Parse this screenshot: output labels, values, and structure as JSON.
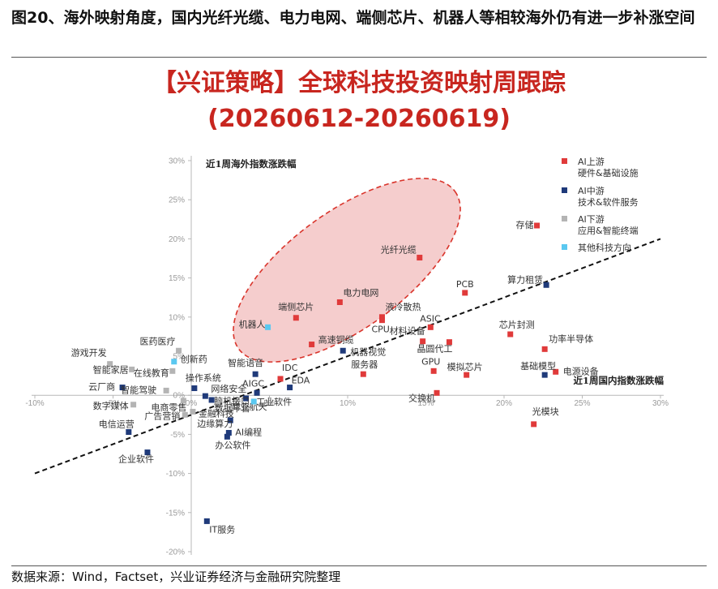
{
  "figure_title": "图20、海外映射角度，国内光纤光缆、电力电网、端侧芯片、机器人等相较海外仍有进一步补涨空间",
  "source": "数据来源：Wind，Factset，兴业证券经济与金融研究院整理",
  "chart_data": {
    "type": "scatter",
    "title": "【兴证策略】全球科技投资映射周跟踪",
    "subtitle": "(20260612-20260619)",
    "xlabel": "近1周国内指数涨跌幅",
    "ylabel": "近1周海外指数涨跌幅",
    "xlim": [
      -0.1,
      0.3
    ],
    "ylim": [
      -0.2,
      0.3
    ],
    "x_ticks": [
      "-10%",
      "-5%",
      "0%",
      "5%",
      "10%",
      "15%",
      "20%",
      "25%",
      "30%"
    ],
    "x_tick_values": [
      -0.1,
      -0.05,
      0,
      0.05,
      0.1,
      0.15,
      0.2,
      0.25,
      0.3
    ],
    "y_ticks": [
      "30%",
      "25%",
      "20%",
      "15%",
      "10%",
      "5%",
      "0%",
      "-5%",
      "-10%",
      "-15%",
      "-20%"
    ],
    "y_tick_values": [
      0.3,
      0.25,
      0.2,
      0.15,
      0.1,
      0.05,
      0,
      -0.05,
      -0.1,
      -0.15,
      -0.2
    ],
    "grid": false,
    "legend_position": "top-right",
    "legend": [
      {
        "group": "upstream",
        "color": "#e03a3a",
        "line1": "AI上游",
        "line2": "硬件&基础设施"
      },
      {
        "group": "midstream",
        "color": "#1f3a7a",
        "line1": "AI中游",
        "line2": "技术&软件服务"
      },
      {
        "group": "downstream",
        "color": "#b4b4b4",
        "line1": "AI下游",
        "line2": "应用&智能终端"
      },
      {
        "group": "other",
        "color": "#5ac8f0",
        "line1": "其他科技方向",
        "line2": ""
      }
    ],
    "colors": {
      "upstream": "#e03a3a",
      "midstream": "#1f3a7a",
      "downstream": "#b4b4b4",
      "other": "#5ac8f0",
      "ellipse_fill": "#f3c4c4",
      "ellipse_stroke": "#d9342b"
    },
    "trendline": [
      [
        -0.1,
        -0.1
      ],
      [
        0.3,
        0.2
      ]
    ],
    "points": [
      {
        "label": "存储",
        "x": 0.221,
        "y": 0.217,
        "group": "upstream"
      },
      {
        "label": "光纤光缆",
        "x": 0.146,
        "y": 0.176,
        "group": "upstream"
      },
      {
        "label": "PCB",
        "x": 0.175,
        "y": 0.131,
        "group": "upstream"
      },
      {
        "label": "电力电网",
        "x": 0.095,
        "y": 0.119,
        "group": "upstream"
      },
      {
        "label": "端侧芯片",
        "x": 0.067,
        "y": 0.099,
        "group": "upstream"
      },
      {
        "label": "液冷散热",
        "x": 0.122,
        "y": 0.1,
        "group": "upstream"
      },
      {
        "label": "CPU",
        "x": 0.122,
        "y": 0.096,
        "group": "upstream"
      },
      {
        "label": "ASIC",
        "x": 0.153,
        "y": 0.087,
        "group": "upstream"
      },
      {
        "label": "材料设备",
        "x": 0.148,
        "y": 0.069,
        "group": "upstream"
      },
      {
        "label": "芯片封测",
        "x": 0.204,
        "y": 0.078,
        "group": "upstream"
      },
      {
        "label": "晶圆代工",
        "x": 0.165,
        "y": 0.068,
        "group": "upstream"
      },
      {
        "label": "高速铜缆",
        "x": 0.077,
        "y": 0.065,
        "group": "upstream"
      },
      {
        "label": "功率半导体",
        "x": 0.226,
        "y": 0.059,
        "group": "upstream"
      },
      {
        "label": "GPU",
        "x": 0.155,
        "y": 0.031,
        "group": "upstream"
      },
      {
        "label": "模拟芯片",
        "x": 0.176,
        "y": 0.026,
        "group": "upstream"
      },
      {
        "label": "服务器",
        "x": 0.11,
        "y": 0.027,
        "group": "upstream"
      },
      {
        "label": "IDC",
        "x": 0.057,
        "y": 0.021,
        "group": "upstream"
      },
      {
        "label": "电源设备",
        "x": 0.233,
        "y": 0.03,
        "group": "upstream"
      },
      {
        "label": "交换机",
        "x": 0.157,
        "y": 0.003,
        "group": "upstream"
      },
      {
        "label": "光模块",
        "x": 0.219,
        "y": -0.037,
        "group": "upstream"
      },
      {
        "label": "算力租赁",
        "x": 0.227,
        "y": 0.141,
        "group": "midstream"
      },
      {
        "label": "机器视觉",
        "x": 0.097,
        "y": 0.057,
        "group": "midstream"
      },
      {
        "label": "基础模型",
        "x": 0.226,
        "y": 0.026,
        "group": "midstream"
      },
      {
        "label": "智能语音",
        "x": 0.041,
        "y": 0.027,
        "group": "midstream"
      },
      {
        "label": "EDA",
        "x": 0.063,
        "y": 0.01,
        "group": "midstream"
      },
      {
        "label": "AIGC",
        "x": 0.042,
        "y": 0.003,
        "group": "midstream"
      },
      {
        "label": "商业航天",
        "x": 0.035,
        "y": -0.004,
        "group": "midstream"
      },
      {
        "label": "操作系统",
        "x": 0.002,
        "y": 0.009,
        "group": "midstream"
      },
      {
        "label": "网络安全",
        "x": 0.009,
        "y": -0.001,
        "group": "midstream"
      },
      {
        "label": "脑机接口",
        "x": 0.013,
        "y": -0.006,
        "group": "midstream"
      },
      {
        "label": "边缘算力",
        "x": 0.025,
        "y": -0.032,
        "group": "midstream"
      },
      {
        "label": "AI编程",
        "x": 0.024,
        "y": -0.048,
        "group": "midstream"
      },
      {
        "label": "办公软件",
        "x": 0.023,
        "y": -0.053,
        "group": "midstream"
      },
      {
        "label": "云厂商",
        "x": -0.044,
        "y": 0.01,
        "group": "midstream"
      },
      {
        "label": "电信运营",
        "x": -0.04,
        "y": -0.047,
        "group": "midstream"
      },
      {
        "label": "企业软件",
        "x": -0.028,
        "y": -0.073,
        "group": "midstream"
      },
      {
        "label": "IT服务",
        "x": 0.01,
        "y": -0.161,
        "group": "midstream"
      },
      {
        "label": "医药医疗",
        "x": -0.008,
        "y": 0.057,
        "group": "downstream"
      },
      {
        "label": "游戏开发",
        "x": -0.052,
        "y": 0.04,
        "group": "downstream"
      },
      {
        "label": "智能家居",
        "x": -0.038,
        "y": 0.033,
        "group": "downstream"
      },
      {
        "label": "在线教育",
        "x": -0.012,
        "y": 0.031,
        "group": "downstream"
      },
      {
        "label": "智能驾驶",
        "x": -0.016,
        "y": 0.006,
        "group": "downstream"
      },
      {
        "label": "电商零售",
        "x": -0.005,
        "y": -0.007,
        "group": "downstream"
      },
      {
        "label": "数字媒体",
        "x": -0.037,
        "y": -0.012,
        "group": "downstream"
      },
      {
        "label": "广告营销",
        "x": -0.004,
        "y": -0.025,
        "group": "downstream"
      },
      {
        "label": "金融科技",
        "x": 0.001,
        "y": -0.021,
        "group": "downstream"
      },
      {
        "label": "数据平台",
        "x": 0.017,
        "y": -0.012,
        "group": "downstream"
      },
      {
        "label": "机器人",
        "x": 0.049,
        "y": 0.087,
        "group": "other"
      },
      {
        "label": "创新药",
        "x": -0.011,
        "y": 0.043,
        "group": "other"
      },
      {
        "label": "工业软件",
        "x": 0.04,
        "y": -0.008,
        "group": "other"
      }
    ]
  }
}
